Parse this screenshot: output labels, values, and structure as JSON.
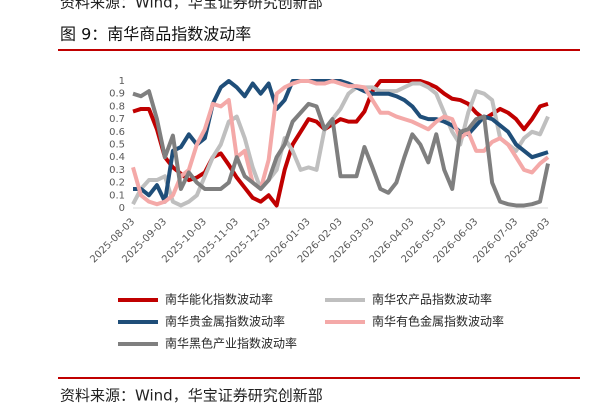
{
  "header_source": "资料来源：Wind，华宝证券研究创新部",
  "source": "资料来源：Wind，华宝证券研究创新部",
  "chart_data": {
    "type": "line",
    "title": "图 9：南华商品指数波动率",
    "categories": [
      "2025-08-03",
      null,
      null,
      null,
      "2025-09-03",
      null,
      null,
      null,
      null,
      "2025-10-03",
      null,
      null,
      null,
      "2025-11-03",
      null,
      null,
      null,
      "2025-12-03",
      null,
      null,
      null,
      null,
      "2026-01-03",
      null,
      null,
      null,
      "2026-02-03",
      null,
      null,
      null,
      "2026-03-03",
      null,
      null,
      null,
      null,
      "2026-04-03",
      null,
      null,
      null,
      "2026-05-03",
      null,
      null,
      null,
      "2026-06-03",
      null,
      null,
      null,
      null,
      "2026-07-03",
      null,
      null,
      null,
      "2026-08-03"
    ],
    "ylim": [
      0,
      1
    ],
    "yticks": [
      0,
      0.1,
      0.2,
      0.3,
      0.4,
      0.5,
      0.6,
      0.7,
      0.8,
      0.9,
      1
    ],
    "series": [
      {
        "name": "南华能化指数波动率",
        "color": "#c00000",
        "values": [
          0.76,
          0.78,
          0.78,
          0.62,
          0.4,
          0.32,
          0.27,
          0.22,
          0.24,
          0.28,
          0.4,
          0.43,
          0.34,
          0.24,
          0.16,
          0.08,
          0.05,
          0.1,
          0.02,
          0.3,
          0.5,
          0.6,
          0.7,
          0.68,
          0.62,
          0.66,
          0.7,
          0.68,
          0.68,
          0.76,
          0.92,
          1,
          1,
          1,
          1,
          1,
          1,
          0.98,
          0.95,
          0.9,
          0.86,
          0.85,
          0.82,
          0.75,
          0.7,
          0.74,
          0.78,
          0.75,
          0.7,
          0.62,
          0.7,
          0.8,
          0.82
        ]
      },
      {
        "name": "南华农产品指数波动率",
        "color": "#bfbfbf",
        "values": [
          0.03,
          0.15,
          0.22,
          0.22,
          0.25,
          0.05,
          0.02,
          0.05,
          0.1,
          0.25,
          0.4,
          0.5,
          0.68,
          0.72,
          0.55,
          0.32,
          0.15,
          0.22,
          0.3,
          0.55,
          0.45,
          0.3,
          0.32,
          0.3,
          0.62,
          0.7,
          0.78,
          0.9,
          0.95,
          0.95,
          0.95,
          0.92,
          0.92,
          0.92,
          0.95,
          0.98,
          0.98,
          0.95,
          0.9,
          0.75,
          0.6,
          0.5,
          0.75,
          0.92,
          0.9,
          0.85,
          0.55,
          0.5,
          0.45,
          0.55,
          0.6,
          0.58,
          0.72
        ]
      },
      {
        "name": "南华贵金属指数波动率",
        "color": "#1f4e79",
        "values": [
          0.15,
          0.15,
          0.1,
          0.18,
          0.05,
          0.45,
          0.48,
          0.58,
          0.5,
          0.55,
          0.82,
          0.95,
          1,
          0.95,
          0.88,
          0.98,
          0.9,
          0.98,
          0.78,
          0.85,
          1,
          1,
          1,
          1,
          1,
          1,
          1,
          0.98,
          0.95,
          0.92,
          0.9,
          0.9,
          0.9,
          0.88,
          0.85,
          0.8,
          0.72,
          0.7,
          0.7,
          0.68,
          0.65,
          0.6,
          0.58,
          0.65,
          0.72,
          0.7,
          0.65,
          0.6,
          0.5,
          0.45,
          0.4,
          0.42,
          0.44
        ]
      },
      {
        "name": "南华有色金属指数波动率",
        "color": "#f4a9a8",
        "values": [
          0.32,
          0.1,
          0.05,
          0.03,
          0.05,
          0.1,
          0.25,
          0.3,
          0.5,
          0.62,
          0.82,
          0.8,
          0.85,
          0.4,
          0.45,
          0.2,
          0.15,
          0.38,
          0.9,
          0.95,
          0.98,
          1,
          1,
          0.98,
          0.98,
          1,
          0.98,
          0.96,
          0.96,
          0.95,
          0.85,
          0.75,
          0.75,
          0.72,
          0.7,
          0.68,
          0.65,
          0.62,
          0.68,
          0.72,
          0.7,
          0.55,
          0.6,
          0.45,
          0.45,
          0.52,
          0.55,
          0.5,
          0.4,
          0.3,
          0.28,
          0.35,
          0.4
        ]
      },
      {
        "name": "南华黑色产业指数波动率",
        "color": "#7f7f7f",
        "values": [
          0.9,
          0.88,
          0.92,
          0.7,
          0.4,
          0.57,
          0.15,
          0.28,
          0.2,
          0.15,
          0.15,
          0.15,
          0.2,
          0.4,
          0.25,
          0.2,
          0.15,
          0.22,
          0.4,
          0.5,
          0.68,
          0.75,
          0.82,
          0.8,
          0.62,
          0.7,
          0.25,
          0.25,
          0.25,
          0.48,
          0.32,
          0.15,
          0.12,
          0.2,
          0.4,
          0.58,
          0.5,
          0.36,
          0.58,
          0.3,
          0.15,
          0.6,
          0.62,
          0.7,
          0.72,
          0.2,
          0.05,
          0.03,
          0.02,
          0.02,
          0.03,
          0.05,
          0.35
        ]
      }
    ]
  }
}
